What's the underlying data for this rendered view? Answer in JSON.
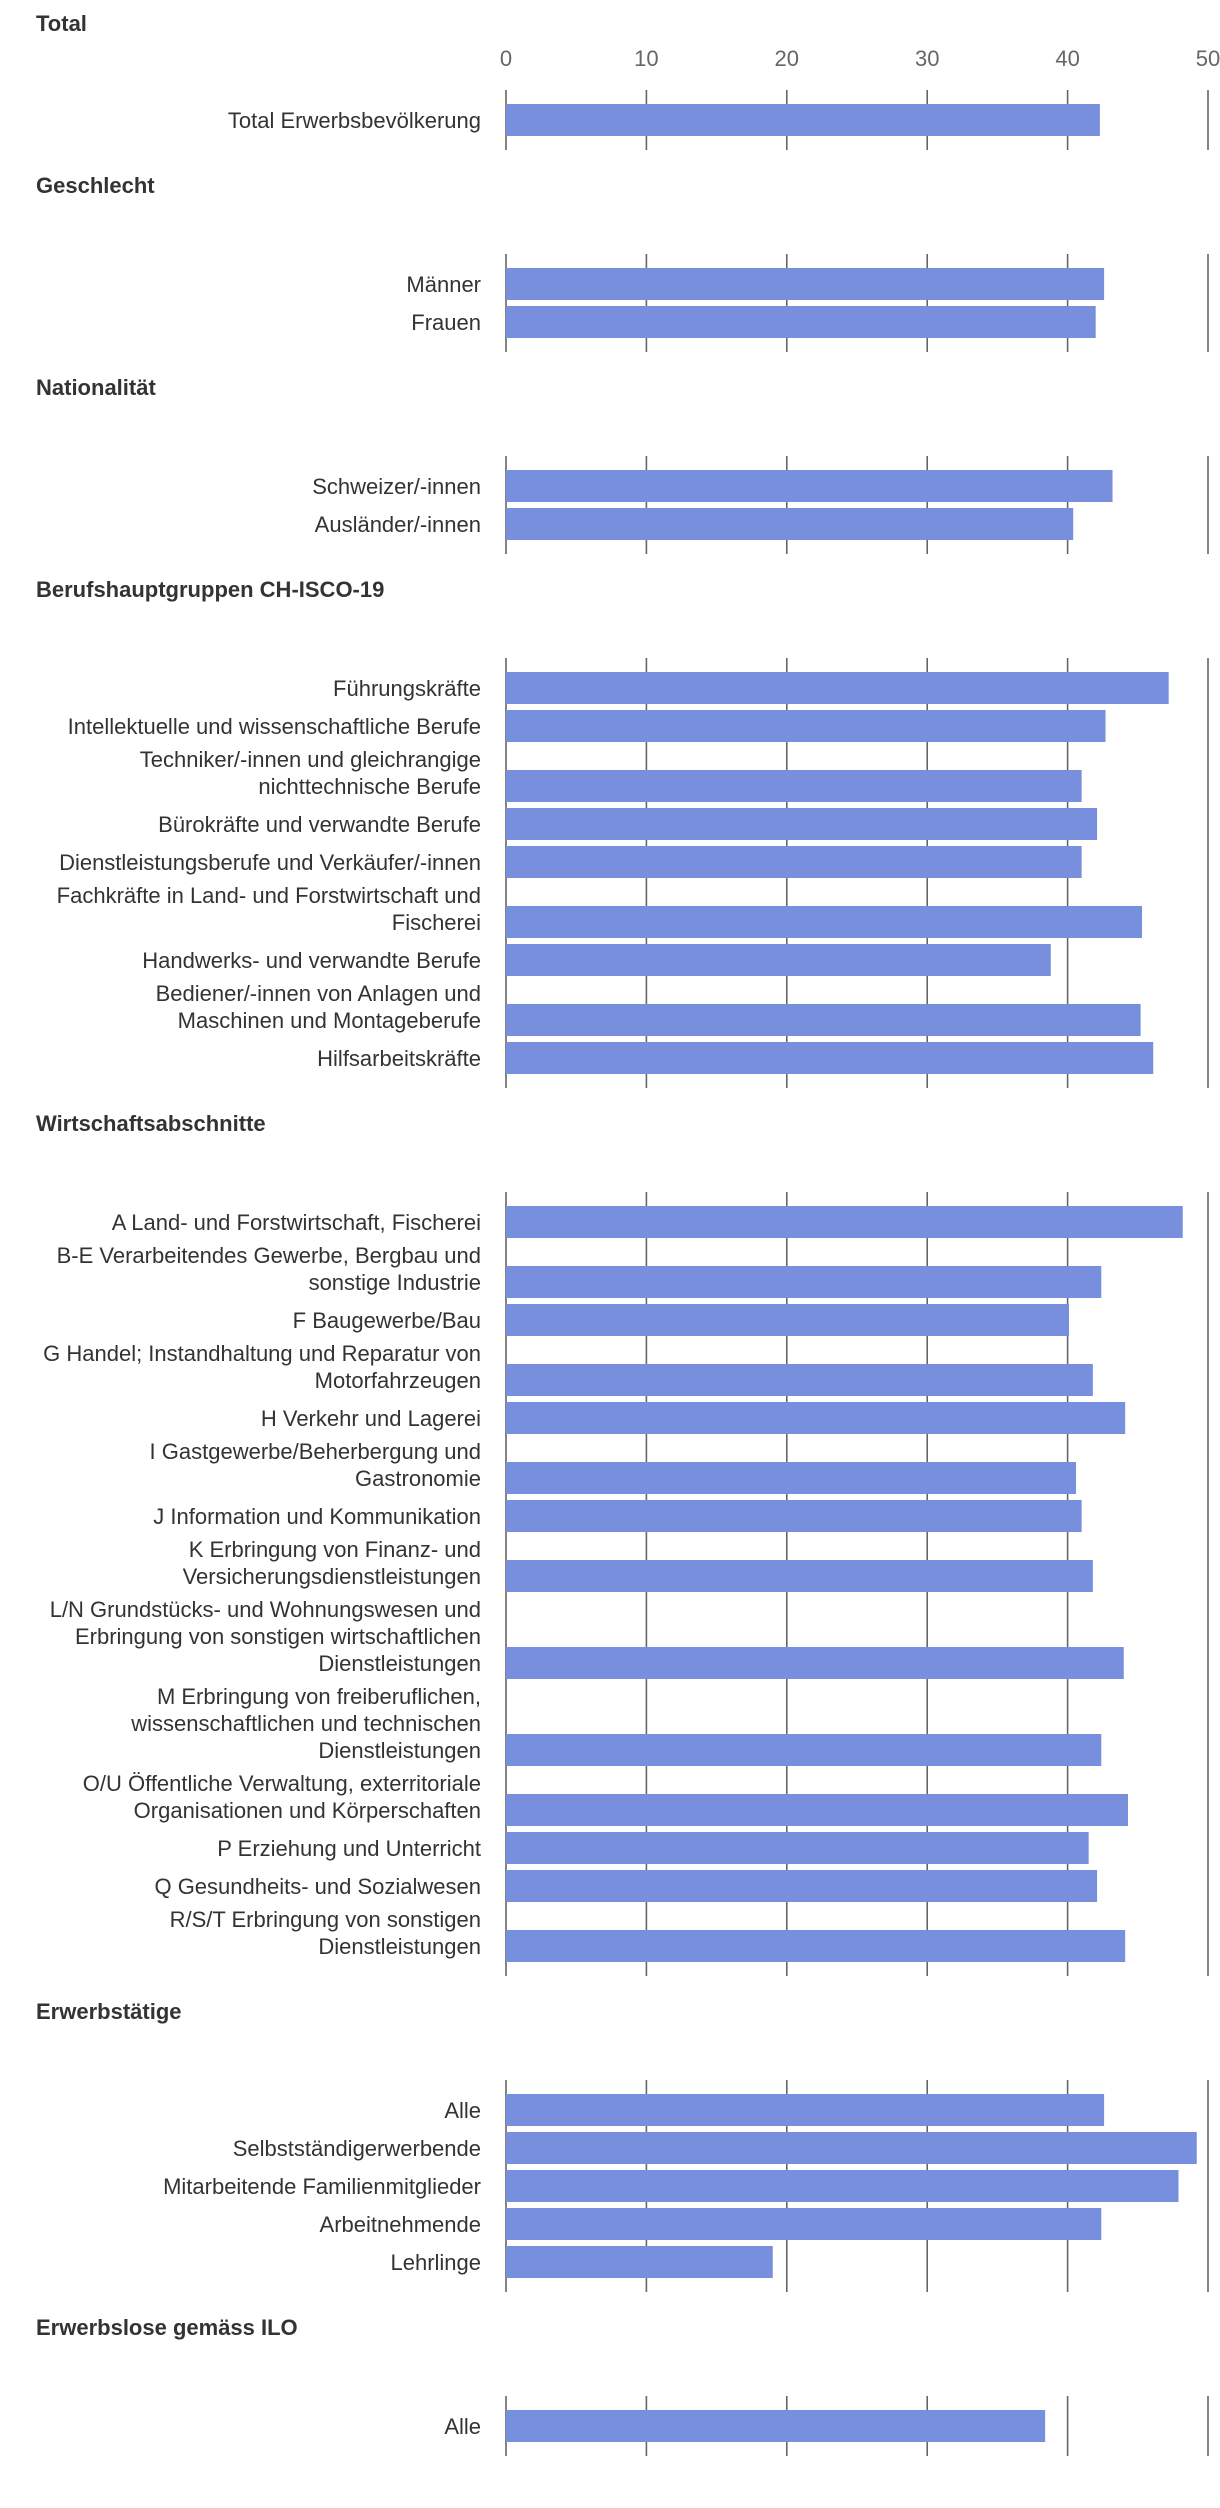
{
  "chart_data": {
    "type": "bar",
    "orientation": "horizontal",
    "xlim": [
      0,
      50
    ],
    "x_ticks": [
      "0",
      "10",
      "20",
      "30",
      "40",
      "50"
    ],
    "grid": true,
    "bar_color": "#778fdc",
    "grid_color": "#666666",
    "text_color": "#333333",
    "groups": [
      {
        "title": "Total",
        "categories": [
          [
            "Total Erwerbsbevölkerung"
          ]
        ],
        "values": [
          42.3
        ]
      },
      {
        "title": "Geschlecht",
        "categories": [
          [
            "Männer"
          ],
          [
            "Frauen"
          ]
        ],
        "values": [
          42.6,
          42.0
        ]
      },
      {
        "title": "Nationalität",
        "categories": [
          [
            "Schweizer/-innen"
          ],
          [
            "Ausländer/-innen"
          ]
        ],
        "values": [
          43.2,
          40.4
        ]
      },
      {
        "title": "Berufshauptgruppen CH-ISCO-19",
        "categories": [
          [
            "Führungskräfte"
          ],
          [
            "Intellektuelle und wissenschaftliche Berufe"
          ],
          [
            "Techniker/-innen und gleichrangige",
            "nichttechnische Berufe"
          ],
          [
            "Bürokräfte und verwandte Berufe"
          ],
          [
            "Dienstleistungsberufe und Verkäufer/-innen"
          ],
          [
            "Fachkräfte in Land- und Forstwirtschaft und",
            "Fischerei"
          ],
          [
            "Handwerks- und verwandte Berufe"
          ],
          [
            "Bediener/-innen von Anlagen und",
            "Maschinen und Montageberufe"
          ],
          [
            "Hilfsarbeitskräfte"
          ]
        ],
        "values": [
          47.2,
          42.7,
          41.0,
          42.1,
          41.0,
          45.3,
          38.8,
          45.2,
          46.1
        ]
      },
      {
        "title": "Wirtschaftsabschnitte",
        "categories": [
          [
            "A Land- und Forstwirtschaft, Fischerei"
          ],
          [
            "B-E Verarbeitendes Gewerbe, Bergbau und",
            "sonstige Industrie"
          ],
          [
            "F Baugewerbe/Bau"
          ],
          [
            "G Handel; Instandhaltung und Reparatur von",
            "Motorfahrzeugen"
          ],
          [
            "H Verkehr und Lagerei"
          ],
          [
            "I Gastgewerbe/Beherbergung und",
            "Gastronomie"
          ],
          [
            "J Information und Kommunikation"
          ],
          [
            "K Erbringung von Finanz- und",
            "Versicherungsdienstleistungen"
          ],
          [
            "L/N Grundstücks- und Wohnungswesen und",
            "Erbringung von sonstigen wirtschaftlichen",
            "Dienstleistungen"
          ],
          [
            "M Erbringung von freiberuflichen,",
            "wissenschaftlichen und technischen",
            "Dienstleistungen"
          ],
          [
            "O/U Öffentliche Verwaltung, exterritoriale",
            "Organisationen und Körperschaften"
          ],
          [
            "P Erziehung und Unterricht"
          ],
          [
            "Q Gesundheits- und Sozialwesen"
          ],
          [
            "R/S/T Erbringung von sonstigen",
            "Dienstleistungen"
          ]
        ],
        "values": [
          48.2,
          42.4,
          40.1,
          41.8,
          44.1,
          40.6,
          41.0,
          41.8,
          44.0,
          42.4,
          44.3,
          41.5,
          42.1,
          44.1
        ]
      },
      {
        "title": "Erwerbstätige",
        "categories": [
          [
            "Alle"
          ],
          [
            "Selbstständigerwerbende"
          ],
          [
            "Mitarbeitende Familienmitglieder"
          ],
          [
            "Arbeitnehmende"
          ],
          [
            "Lehrlinge"
          ]
        ],
        "values": [
          42.6,
          49.2,
          47.9,
          42.4,
          19.0
        ]
      },
      {
        "title": "Erwerbslose gemäss ILO",
        "categories": [
          [
            "Alle"
          ]
        ],
        "values": [
          38.4
        ]
      }
    ]
  }
}
